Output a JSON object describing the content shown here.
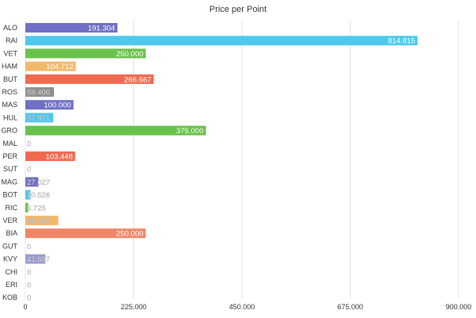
{
  "chart_data": {
    "type": "bar",
    "orientation": "horizontal",
    "title": "Price per Point",
    "xlabel": "",
    "ylabel": "",
    "categories": [
      "ALO",
      "RAI",
      "VET",
      "HAM",
      "BUT",
      "ROS",
      "MAS",
      "HUL",
      "GRO",
      "MAL",
      "PER",
      "SUT",
      "MAG",
      "BOT",
      "RIC",
      "VER",
      "BIA",
      "GUT",
      "KVY",
      "CHI",
      "ERI",
      "KOB"
    ],
    "values": [
      191.304,
      814.815,
      250.0,
      104.712,
      266.667,
      59.406,
      100.0,
      57.971,
      375.0,
      0,
      103.448,
      0,
      27.027,
      10.526,
      5.725,
      68.182,
      250.0,
      0,
      41.667,
      0,
      0,
      0
    ],
    "value_labels": [
      "191.304",
      "814.815",
      "250.000",
      "104.712",
      "266.667",
      "59.406",
      "100.000",
      "57.971",
      "375.000",
      "0",
      "103.448",
      "0",
      "27.027",
      "10.526",
      "5.725",
      "68.182",
      "250.000",
      "0",
      "41.667",
      "0",
      "0",
      "0"
    ],
    "colors": [
      "#6f6fc5",
      "#4fc8ee",
      "#6ac14c",
      "#f2b96b",
      "#f06a50",
      "#909090",
      "#6f6fc5",
      "#4fc8ee",
      "#6ac14c",
      "#f2b96b",
      "#f06a50",
      "#909090",
      "#6f6fc5",
      "#4fc8ee",
      "#6ac14c",
      "#f2b96b",
      "#f0866a",
      "#909090",
      "#9a9ad8",
      "#4fc8ee",
      "#6ac14c",
      "#f2b96b"
    ],
    "xlim": [
      0,
      900
    ],
    "xticks": [
      0,
      225,
      450,
      675,
      900
    ],
    "xtick_labels": [
      "0",
      "225.000",
      "450.000",
      "675.000",
      "900.000"
    ],
    "grid": true
  }
}
